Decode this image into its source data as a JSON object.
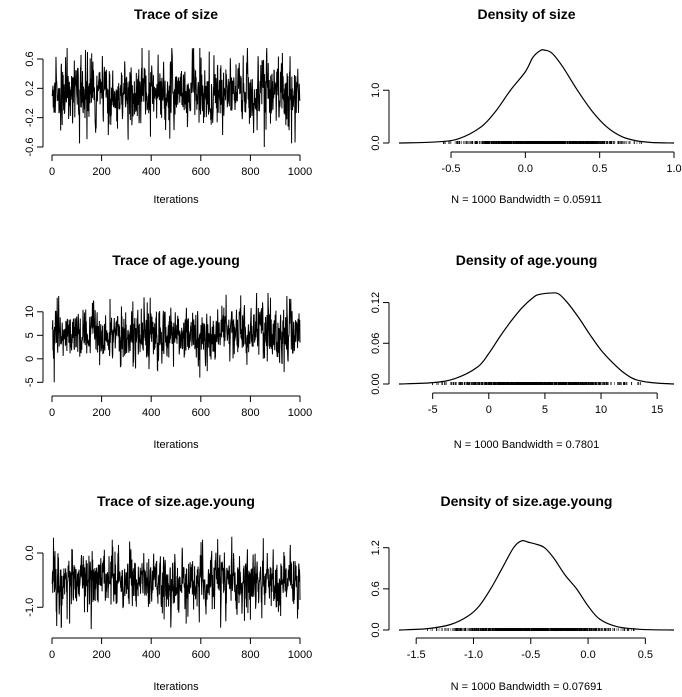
{
  "chart_data": [
    {
      "type": "line",
      "kind": "trace",
      "title": "Trace of size",
      "xlabel": "Iterations",
      "ylabel": "",
      "xlim": [
        0,
        1000
      ],
      "ylim": [
        -0.6,
        0.75
      ],
      "xticks": [
        "0",
        "200",
        "400",
        "600",
        "800",
        "1000"
      ],
      "yticks": [
        "-0.6",
        "-0.2",
        "0.2",
        "0.6"
      ],
      "x": [
        0,
        1000
      ],
      "center": 0.12,
      "sd": 0.2,
      "extremes": [
        [
          110,
          -0.55
        ],
        [
          855,
          -0.62
        ],
        [
          965,
          -0.55
        ],
        [
          60,
          0.75
        ],
        [
          390,
          0.72
        ],
        [
          770,
          0.65
        ]
      ],
      "seed": 11
    },
    {
      "type": "area",
      "kind": "density",
      "title": "Density of size",
      "xlabel": "N = 1000   Bandwidth = 0.05911",
      "ylabel": "",
      "xlim": [
        -0.85,
        1.0
      ],
      "ylim": [
        0,
        1.8
      ],
      "xticks": [
        "-0.5",
        "0.0",
        "0.5",
        "1.0"
      ],
      "yticks": [
        "0.0",
        "1.0"
      ],
      "x": [
        -0.85,
        -0.6,
        -0.45,
        -0.3,
        -0.2,
        -0.1,
        0.0,
        0.05,
        0.1,
        0.13,
        0.18,
        0.25,
        0.35,
        0.45,
        0.55,
        0.65,
        0.75,
        0.85,
        1.0
      ],
      "y": [
        0.0,
        0.02,
        0.08,
        0.3,
        0.6,
        1.0,
        1.35,
        1.62,
        1.75,
        1.76,
        1.7,
        1.45,
        1.0,
        0.6,
        0.3,
        0.12,
        0.04,
        0.01,
        0.0
      ],
      "rug_range": [
        -0.55,
        0.78
      ],
      "seed": 21
    },
    {
      "type": "line",
      "kind": "trace",
      "title": "Trace of age.young",
      "xlabel": "Iterations",
      "ylabel": "",
      "xlim": [
        0,
        1000
      ],
      "ylim": [
        -6,
        14
      ],
      "xticks": [
        "0",
        "200",
        "400",
        "600",
        "800",
        "1000"
      ],
      "yticks": [
        "-5",
        "0",
        "5",
        "10"
      ],
      "x": [
        0,
        1000
      ],
      "center": 5,
      "sd": 2.7,
      "extremes": [
        [
          8,
          -5
        ],
        [
          595,
          -4
        ],
        [
          20,
          13
        ],
        [
          395,
          13
        ],
        [
          760,
          13.5
        ],
        [
          880,
          13
        ]
      ],
      "seed": 33
    },
    {
      "type": "area",
      "kind": "density",
      "title": "Density of age.young",
      "xlabel": "N = 1000   Bandwidth = 0.7801",
      "ylabel": "",
      "xlim": [
        -8,
        16.5
      ],
      "ylim": [
        0,
        0.14
      ],
      "xticks": [
        "-5",
        "0",
        "5",
        "10",
        "15"
      ],
      "yticks": [
        "0.00",
        "0.06",
        "0.12"
      ],
      "x": [
        -8,
        -5,
        -3,
        -1,
        0,
        1,
        2,
        3,
        4,
        4.5,
        5.5,
        6.2,
        7,
        8,
        9,
        10,
        11,
        12,
        13,
        14.5,
        16.5
      ],
      "y": [
        0.0,
        0.002,
        0.008,
        0.025,
        0.045,
        0.07,
        0.093,
        0.113,
        0.128,
        0.132,
        0.134,
        0.133,
        0.12,
        0.098,
        0.073,
        0.05,
        0.032,
        0.017,
        0.007,
        0.002,
        0.0
      ],
      "rug_range": [
        -5,
        13.5
      ],
      "seed": 44
    },
    {
      "type": "line",
      "kind": "trace",
      "title": "Trace of size.age.young",
      "xlabel": "Iterations",
      "ylabel": "",
      "xlim": [
        0,
        1000
      ],
      "ylim": [
        -1.4,
        0.35
      ],
      "xticks": [
        "0",
        "200",
        "400",
        "600",
        "800",
        "1000"
      ],
      "yticks": [
        "-1.0",
        "0.0"
      ],
      "x": [
        0,
        1000
      ],
      "center": -0.5,
      "sd": 0.26,
      "extremes": [
        [
          5,
          0.28
        ],
        [
          600,
          0.2
        ],
        [
          960,
          0.15
        ],
        [
          70,
          -1.3
        ],
        [
          540,
          -1.3
        ],
        [
          775,
          -1.25
        ]
      ],
      "seed": 55
    },
    {
      "type": "area",
      "kind": "density",
      "title": "Density of size.age.young",
      "xlabel": "N = 1000   Bandwidth = 0.07691",
      "ylabel": "",
      "xlim": [
        -1.65,
        0.75
      ],
      "ylim": [
        0,
        1.4
      ],
      "xticks": [
        "-1.5",
        "-1.0",
        "-0.5",
        "0.0",
        "0.5"
      ],
      "yticks": [
        "0.0",
        "0.6",
        "1.2"
      ],
      "x": [
        -1.65,
        -1.4,
        -1.2,
        -1.05,
        -0.95,
        -0.85,
        -0.75,
        -0.65,
        -0.58,
        -0.52,
        -0.45,
        -0.38,
        -0.3,
        -0.2,
        -0.1,
        0.0,
        0.1,
        0.25,
        0.45,
        0.75
      ],
      "y": [
        0.0,
        0.02,
        0.08,
        0.2,
        0.35,
        0.6,
        0.9,
        1.2,
        1.3,
        1.28,
        1.25,
        1.2,
        1.05,
        0.8,
        0.6,
        0.35,
        0.16,
        0.05,
        0.01,
        0.0
      ],
      "rug_range": [
        -1.4,
        0.4
      ],
      "seed": 66
    }
  ]
}
